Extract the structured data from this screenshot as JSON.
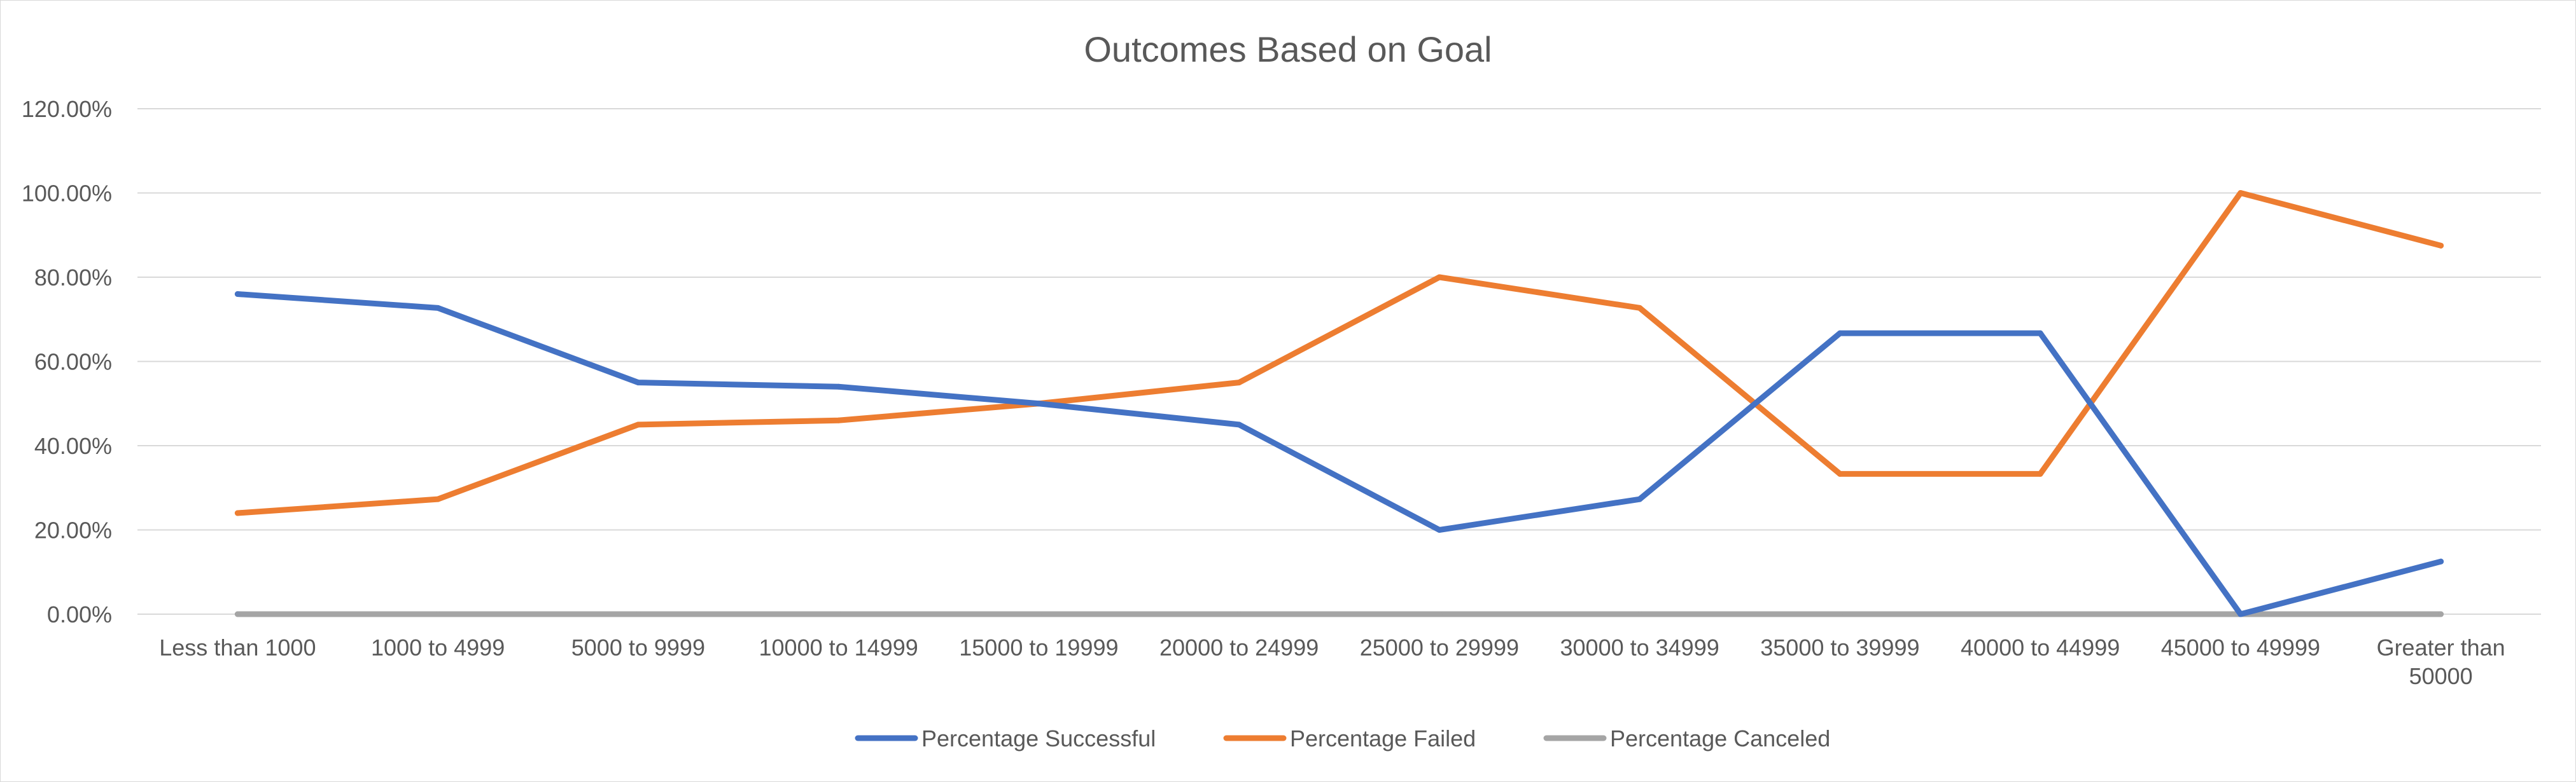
{
  "chart_data": {
    "type": "line",
    "title": "Outcomes Based on Goal",
    "xlabel": "",
    "ylabel": "",
    "categories": [
      "Less than 1000",
      "1000 to 4999",
      "5000 to 9999",
      "10000 to 14999",
      "15000 to 19999",
      "20000 to 24999",
      "25000 to 29999",
      "30000 to 34999",
      "35000 to 39999",
      "40000 to 44999",
      "45000 to 49999",
      "Greater than 50000"
    ],
    "ylim": [
      0,
      1.2
    ],
    "yticks": [
      0,
      0.2,
      0.4,
      0.6,
      0.8,
      1.0,
      1.2
    ],
    "ytick_labels": [
      "0.00%",
      "20.00%",
      "40.00%",
      "60.00%",
      "80.00%",
      "100.00%",
      "120.00%"
    ],
    "grid": true,
    "legend_position": "bottom",
    "series": [
      {
        "name": "Percentage Successful",
        "color": "#4472c4",
        "values": [
          0.76,
          0.727,
          0.55,
          0.54,
          0.5,
          0.45,
          0.2,
          0.273,
          0.667,
          0.667,
          0.0,
          0.125
        ]
      },
      {
        "name": "Percentage Failed",
        "color": "#ed7d31",
        "values": [
          0.24,
          0.273,
          0.45,
          0.46,
          0.5,
          0.55,
          0.8,
          0.727,
          0.333,
          0.333,
          1.0,
          0.875
        ]
      },
      {
        "name": "Percentage Canceled",
        "color": "#a5a5a5",
        "values": [
          0,
          0,
          0,
          0,
          0,
          0,
          0,
          0,
          0,
          0,
          0,
          0
        ]
      }
    ]
  }
}
